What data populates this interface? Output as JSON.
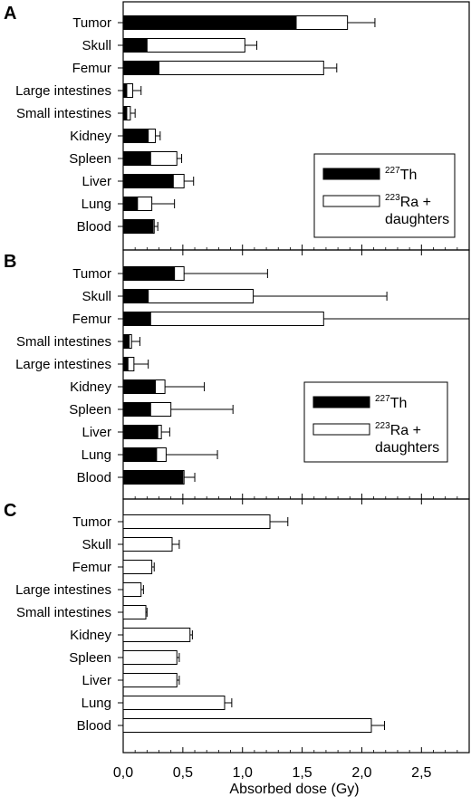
{
  "chart_data": [
    {
      "type": "bar",
      "orientation": "horizontal",
      "stacked": true,
      "panel_label": "A",
      "categories": [
        "Tumor",
        "Skull",
        "Femur",
        "Large intestines",
        "Small intestines",
        "Kidney",
        "Spleen",
        "Liver",
        "Lung",
        "Blood"
      ],
      "series": [
        {
          "name_superscript": "227",
          "name_text": "Th",
          "color": "#000000",
          "values": [
            1.45,
            0.2,
            0.3,
            0.03,
            0.03,
            0.21,
            0.23,
            0.42,
            0.12,
            0.25
          ]
        },
        {
          "name_superscript": "223",
          "name_text": "Ra +",
          "name_line2": "daughters",
          "color": "#ffffff",
          "values": [
            0.43,
            0.82,
            1.38,
            0.05,
            0.03,
            0.06,
            0.22,
            0.09,
            0.12,
            0.01
          ]
        }
      ],
      "error": [
        0.23,
        0.1,
        0.11,
        0.07,
        0.04,
        0.04,
        0.04,
        0.08,
        0.19,
        0.03
      ],
      "legend_position": "right"
    },
    {
      "type": "bar",
      "orientation": "horizontal",
      "stacked": true,
      "panel_label": "B",
      "categories": [
        "Tumor",
        "Skull",
        "Femur",
        "Small intestines",
        "Large intestines",
        "Kidney",
        "Spleen",
        "Liver",
        "Lung",
        "Blood"
      ],
      "series": [
        {
          "name_superscript": "227",
          "name_text": "Th",
          "color": "#000000",
          "values": [
            0.43,
            0.21,
            0.23,
            0.05,
            0.04,
            0.27,
            0.23,
            0.29,
            0.28,
            0.5
          ]
        },
        {
          "name_superscript": "223",
          "name_text": "Ra +",
          "name_line2": "daughters",
          "color": "#ffffff",
          "values": [
            0.08,
            0.88,
            1.45,
            0.02,
            0.05,
            0.08,
            0.17,
            0.03,
            0.08,
            0.01
          ]
        }
      ],
      "error": [
        0.7,
        1.12,
        1.3,
        0.07,
        0.12,
        0.33,
        0.52,
        0.07,
        0.43,
        0.09
      ],
      "legend_position": "right"
    },
    {
      "type": "bar",
      "orientation": "horizontal",
      "stacked": false,
      "panel_label": "C",
      "categories": [
        "Tumor",
        "Skull",
        "Femur",
        "Large intestines",
        "Small intestines",
        "Kidney",
        "Spleen",
        "Liver",
        "Lung",
        "Blood"
      ],
      "series": [
        {
          "color": "#ffffff",
          "values": [
            1.23,
            0.41,
            0.24,
            0.15,
            0.19,
            0.56,
            0.45,
            0.45,
            0.85,
            2.08
          ]
        }
      ],
      "error": [
        0.15,
        0.06,
        0.02,
        0.02,
        0.01,
        0.02,
        0.02,
        0.02,
        0.06,
        0.11
      ]
    }
  ],
  "x_axis": {
    "xlabel": "Absorbed dose (Gy)",
    "xlim": [
      0,
      2.9
    ],
    "ticks": [
      0,
      0.5,
      1.0,
      1.5,
      2.0,
      2.5
    ],
    "tick_labels": [
      "0,0",
      "0,5",
      "1,0",
      "1,5",
      "2,0",
      "2,5"
    ],
    "minor_ticks": [
      0.1,
      0.2,
      0.3,
      0.4,
      0.6,
      0.7,
      0.8,
      0.9,
      1.1,
      1.2,
      1.3,
      1.4,
      1.6,
      1.7,
      1.8,
      1.9,
      2.1,
      2.2,
      2.3,
      2.4,
      2.6,
      2.7,
      2.8
    ]
  }
}
